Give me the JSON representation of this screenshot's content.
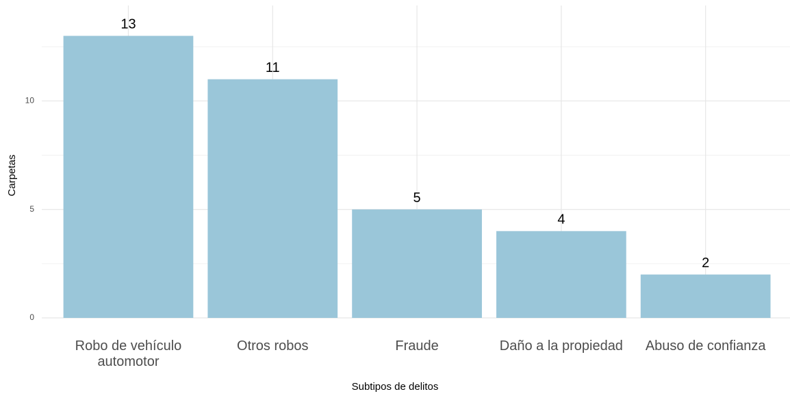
{
  "chart_data": {
    "type": "bar",
    "categories": [
      "Robo de vehículo automotor",
      "Otros robos",
      "Fraude",
      "Daño a la propiedad",
      "Abuso de confianza"
    ],
    "values": [
      13,
      11,
      5,
      4,
      2
    ],
    "color": "#9ac6d9",
    "ylim": [
      0,
      14.4
    ],
    "yticks": [
      0,
      5,
      10
    ],
    "minor_yticks": [
      2.5,
      7.5,
      12.5
    ],
    "grid": true,
    "xlabel": "Subtipos de delitos",
    "ylabel": "Carpetas"
  }
}
